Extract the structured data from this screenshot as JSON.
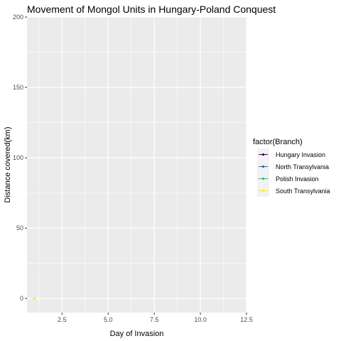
{
  "chart_data": {
    "type": "line",
    "title": "Movement of Mongol Units in Hungary-Poland Conquest",
    "xlabel": "Day of Invasion",
    "ylabel": "Distance covered(km)",
    "xlim": [
      0.6,
      12.5
    ],
    "ylim": [
      -10,
      200
    ],
    "x_ticks": [
      2.5,
      5.0,
      7.5,
      10.0,
      12.5
    ],
    "x_tick_labels": [
      "2.5",
      "5.0",
      "7.5",
      "10.0",
      "12.5"
    ],
    "y_ticks": [
      0,
      50,
      100,
      150,
      200
    ],
    "y_tick_labels": [
      "0",
      "50",
      "100",
      "150",
      "200"
    ],
    "grid": true,
    "legend": {
      "title": "factor(Branch)",
      "placement": "right"
    },
    "series": [
      {
        "name": "Hungary Invasion",
        "color": "#440154",
        "points": []
      },
      {
        "name": "North Transylvania",
        "color": "#31688e",
        "points": []
      },
      {
        "name": "Polish Invasion",
        "color": "#35b779",
        "points": []
      },
      {
        "name": "South Transylvania",
        "color": "#fde725",
        "points": [
          {
            "x": 1,
            "y": 0
          }
        ]
      }
    ]
  }
}
